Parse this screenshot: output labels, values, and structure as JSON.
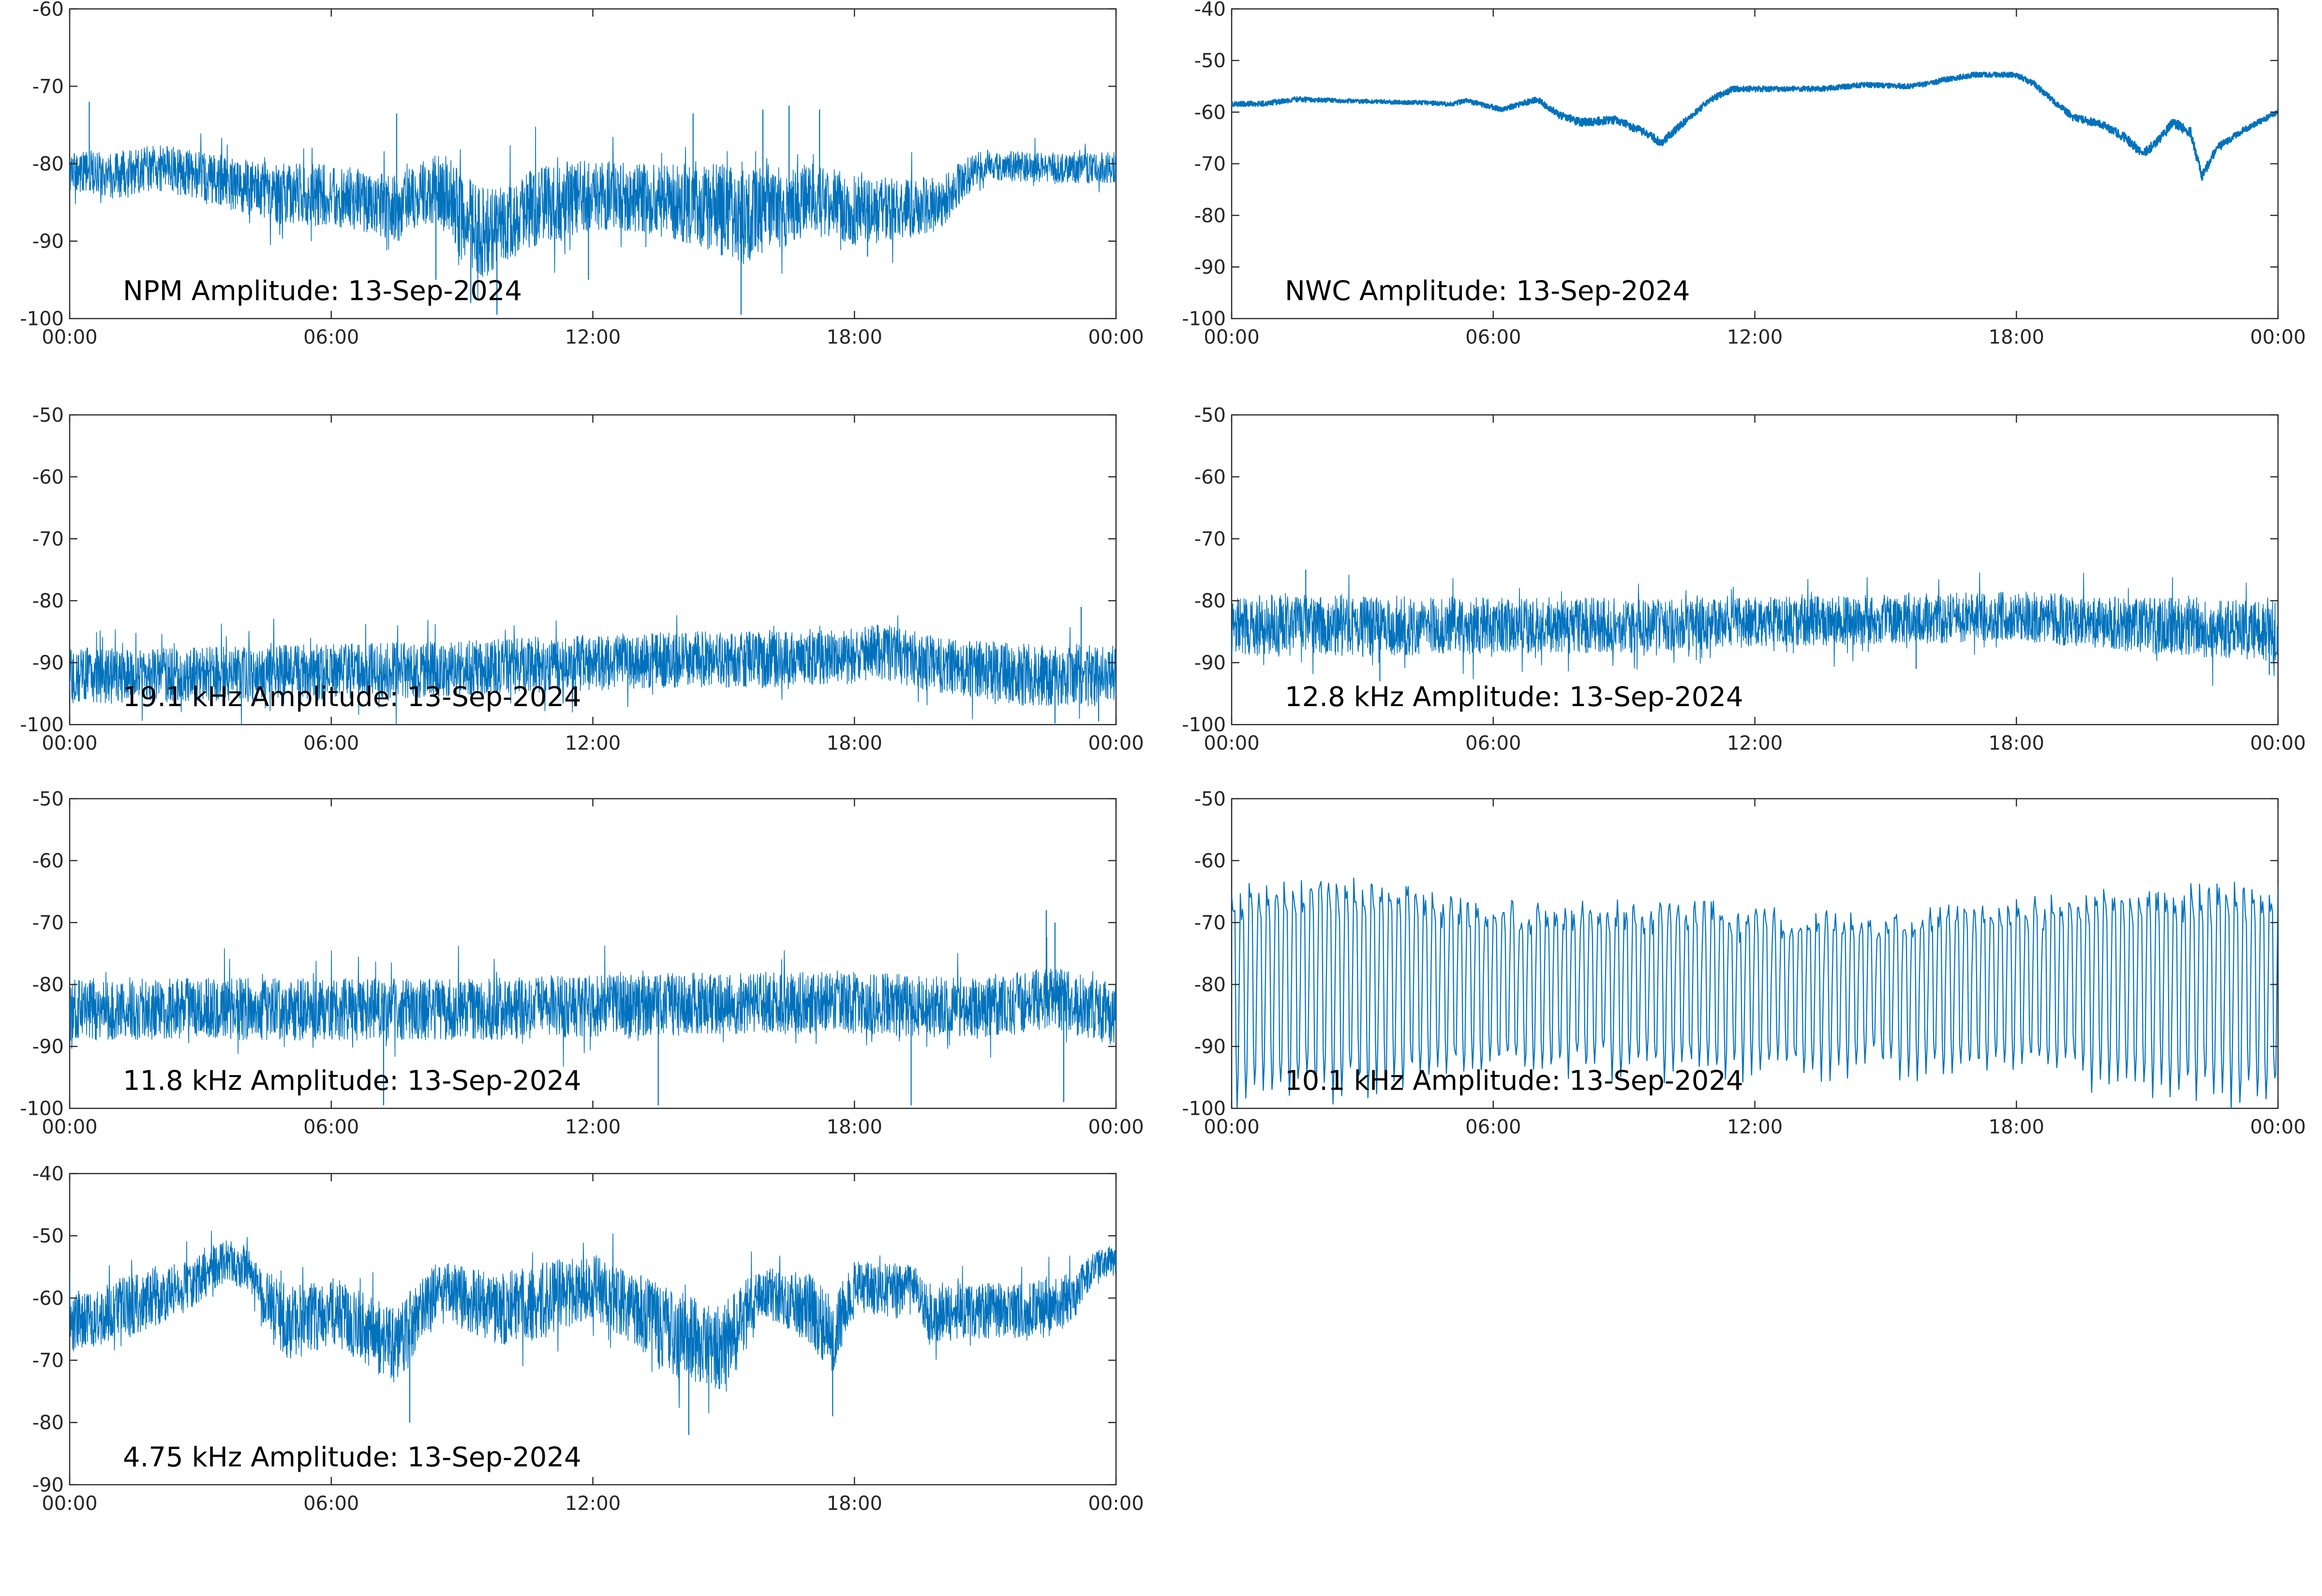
{
  "chart_data": [
    {
      "type": "line",
      "title": "NPM Amplitude: 13-Sep-2024",
      "xlabel": "",
      "ylabel": "",
      "xlim": [
        "00:00",
        "24:00"
      ],
      "ylim": [
        -100,
        -60
      ],
      "yticks": [
        -100,
        -90,
        -80,
        -70,
        -60
      ],
      "xticks": [
        "00:00",
        "06:00",
        "12:00",
        "18:00",
        "00:00"
      ],
      "grid": false,
      "color": "#0072bd",
      "trace": {
        "hours": [
          0,
          1,
          2,
          3,
          4,
          5,
          6,
          7,
          7.5,
          8,
          8.5,
          9,
          9.5,
          10,
          10.5,
          11,
          12,
          13,
          14,
          15,
          15.5,
          16,
          16.5,
          17,
          18,
          19,
          20,
          20.5,
          21,
          22,
          23,
          24
        ],
        "center": [
          -81,
          -81.5,
          -80.5,
          -81.5,
          -83,
          -84,
          -84,
          -85,
          -86,
          -84,
          -83,
          -87,
          -89,
          -88,
          -86,
          -85,
          -84,
          -84.5,
          -85,
          -86,
          -87,
          -85,
          -86,
          -84,
          -86,
          -86,
          -85,
          -82,
          -80,
          -80.5,
          -80.5,
          -80.5
        ],
        "noise": [
          2.5,
          3,
          3,
          3,
          3.5,
          4,
          4,
          4,
          4.5,
          4,
          5,
          6,
          6,
          5,
          5,
          5,
          4.5,
          4.5,
          5,
          6,
          6,
          6,
          5,
          4.5,
          4.5,
          4,
          3.5,
          2.5,
          2,
          2,
          2,
          2
        ]
      },
      "spikes": [
        [
          0.45,
          -72
        ],
        [
          7.5,
          -73.5
        ],
        [
          8.4,
          -95
        ],
        [
          9.2,
          -98
        ],
        [
          9.8,
          -99.5
        ],
        [
          11.9,
          -95
        ],
        [
          14.3,
          -73.5
        ],
        [
          15.4,
          -99.5
        ],
        [
          15.9,
          -73
        ],
        [
          16.5,
          -72.5
        ],
        [
          17.2,
          -73
        ],
        [
          18.3,
          -92
        ]
      ]
    },
    {
      "type": "line",
      "title": "NWC Amplitude: 13-Sep-2024",
      "xlabel": "",
      "ylabel": "",
      "xlim": [
        "00:00",
        "24:00"
      ],
      "ylim": [
        -100,
        -40
      ],
      "yticks": [
        -100,
        -90,
        -80,
        -70,
        -60,
        -50,
        -40
      ],
      "xticks": [
        "00:00",
        "06:00",
        "12:00",
        "18:00",
        "00:00"
      ],
      "grid": false,
      "color": "#0072bd",
      "trace": {
        "hours": [
          0,
          0.8,
          1.5,
          2.5,
          3.5,
          4.5,
          5.0,
          5.4,
          6.2,
          7.0,
          7.5,
          8.0,
          8.8,
          9.5,
          9.85,
          10.5,
          11.0,
          11.5,
          12.5,
          13.5,
          14.5,
          15.5,
          16.0,
          16.3,
          17.0,
          17.5,
          18.0,
          18.4,
          18.8,
          19.3,
          20.0,
          20.5,
          20.9,
          21.2,
          21.6,
          22.0,
          22.25,
          22.6,
          23.2,
          24.0
        ],
        "center": [
          -58.5,
          -58.3,
          -57.5,
          -57.8,
          -58.0,
          -58.2,
          -58.5,
          -57.8,
          -59.5,
          -57.5,
          -60.5,
          -62.0,
          -61.5,
          -64.0,
          -66.0,
          -61.0,
          -57.5,
          -55.5,
          -55.5,
          -55.5,
          -54.7,
          -55.0,
          -54.5,
          -53.8,
          -52.8,
          -52.7,
          -52.8,
          -54.5,
          -57.5,
          -61.0,
          -62.5,
          -65.0,
          -68.0,
          -66.0,
          -62.0,
          -64.0,
          -72.5,
          -67.0,
          -63.5,
          -60.0
        ],
        "noise": [
          0.5,
          0.5,
          0.5,
          0.4,
          0.4,
          0.4,
          0.4,
          0.5,
          0.5,
          0.6,
          0.7,
          0.8,
          0.8,
          0.8,
          0.8,
          0.7,
          0.6,
          0.6,
          0.5,
          0.5,
          0.5,
          0.5,
          0.5,
          0.5,
          0.5,
          0.5,
          0.5,
          0.6,
          0.6,
          0.7,
          0.8,
          0.9,
          1.0,
          0.9,
          0.9,
          1.0,
          1.0,
          0.8,
          0.6,
          0.5
        ]
      },
      "spikes": []
    },
    {
      "type": "line",
      "title": "19.1 kHz Amplitude: 13-Sep-2024",
      "xlabel": "",
      "ylabel": "",
      "xlim": [
        "00:00",
        "24:00"
      ],
      "ylim": [
        -100,
        -50
      ],
      "yticks": [
        -100,
        -90,
        -80,
        -70,
        -60,
        -50
      ],
      "xticks": [
        "00:00",
        "06:00",
        "12:00",
        "18:00",
        "00:00"
      ],
      "grid": false,
      "color": "#0072bd",
      "trace": {
        "hours": [
          0,
          3,
          6,
          9,
          12,
          14,
          16,
          18,
          18.5,
          20,
          22,
          24
        ],
        "center": [
          -92,
          -92,
          -91.5,
          -91,
          -90,
          -89.5,
          -89.5,
          -89,
          -88,
          -90.5,
          -92,
          -92
        ],
        "noise": [
          4.5,
          4.5,
          4.5,
          4.5,
          4.5,
          4.5,
          4.5,
          4.5,
          4.5,
          4.5,
          5,
          5
        ]
      },
      "spikes": [
        [
          23.2,
          -81
        ],
        [
          22.6,
          -99.8
        ],
        [
          23.6,
          -99.5
        ]
      ]
    },
    {
      "type": "line",
      "title": "12.8 kHz Amplitude: 13-Sep-2024",
      "xlabel": "",
      "ylabel": "",
      "xlim": [
        "00:00",
        "24:00"
      ],
      "ylim": [
        -100,
        -50
      ],
      "yticks": [
        -100,
        -90,
        -80,
        -70,
        -60,
        -50
      ],
      "xticks": [
        "00:00",
        "06:00",
        "12:00",
        "18:00",
        "00:00"
      ],
      "grid": false,
      "color": "#0072bd",
      "trace": {
        "hours": [
          0,
          3,
          6,
          9,
          12,
          15,
          18,
          21,
          24
        ],
        "center": [
          -84,
          -84,
          -84,
          -84,
          -83.5,
          -83,
          -82.5,
          -84,
          -85
        ],
        "noise": [
          5,
          5,
          4.5,
          4.5,
          4,
          4,
          4,
          4.5,
          5
        ]
      },
      "spikes": [
        [
          1.7,
          -75
        ],
        [
          3.4,
          -93
        ],
        [
          15.7,
          -91
        ],
        [
          23.8,
          -92
        ]
      ]
    },
    {
      "type": "line",
      "title": "11.8 kHz Amplitude: 13-Sep-2024",
      "xlabel": "",
      "ylabel": "",
      "xlim": [
        "00:00",
        "24:00"
      ],
      "ylim": [
        -100,
        -50
      ],
      "yticks": [
        -100,
        -90,
        -80,
        -70,
        -60,
        -50
      ],
      "xticks": [
        "00:00",
        "06:00",
        "12:00",
        "18:00",
        "00:00"
      ],
      "grid": false,
      "color": "#0072bd",
      "trace": {
        "hours": [
          0,
          3,
          6,
          9,
          12,
          15,
          18,
          21,
          22.5,
          24
        ],
        "center": [
          -84,
          -84,
          -84,
          -84,
          -83.5,
          -83,
          -83,
          -84,
          -82,
          -85
        ],
        "noise": [
          5,
          5,
          5,
          5,
          5,
          5,
          5,
          5,
          5,
          5
        ]
      },
      "spikes": [
        [
          22.4,
          -68
        ],
        [
          22.6,
          -70
        ],
        [
          7.2,
          -99.5
        ],
        [
          13.5,
          -99.5
        ],
        [
          19.3,
          -99.5
        ],
        [
          22.8,
          -99
        ]
      ]
    },
    {
      "type": "line",
      "title": "10.1 kHz Amplitude: 13-Sep-2024",
      "xlabel": "",
      "ylabel": "",
      "xlim": [
        "00:00",
        "24:00"
      ],
      "ylim": [
        -100,
        -50
      ],
      "yticks": [
        -100,
        -90,
        -80,
        -70,
        -60,
        -50
      ],
      "xticks": [
        "00:00",
        "06:00",
        "12:00",
        "18:00",
        "00:00"
      ],
      "grid": false,
      "color": "#0072bd",
      "pulse_trace": {
        "hours": [
          0,
          3,
          6,
          9,
          12,
          15,
          18,
          20,
          22,
          24
        ],
        "high": [
          -65,
          -64,
          -67,
          -67,
          -68,
          -68,
          -67,
          -66,
          -65,
          -65
        ],
        "low": [
          -100,
          -98,
          -95,
          -95,
          -95,
          -95,
          -95,
          -97,
          -99,
          -100
        ],
        "spacing_min": 12
      },
      "spikes": []
    },
    {
      "type": "line",
      "title": "4.75 kHz Amplitude: 13-Sep-2024",
      "xlabel": "",
      "ylabel": "",
      "xlim": [
        "00:00",
        "24:00"
      ],
      "ylim": [
        -90,
        -40
      ],
      "yticks": [
        -90,
        -80,
        -70,
        -60,
        -50,
        -40
      ],
      "xticks": [
        "00:00",
        "06:00",
        "12:00",
        "18:00",
        "00:00"
      ],
      "grid": false,
      "color": "#0072bd",
      "trace": {
        "hours": [
          0,
          1,
          2,
          3,
          3.5,
          4,
          4.5,
          5,
          6,
          7,
          7.5,
          8,
          8.5,
          9,
          10,
          11,
          12,
          13,
          14,
          15,
          15.5,
          16,
          17,
          17.5,
          18,
          19,
          19.3,
          19.8,
          20,
          21,
          22,
          23,
          23.5,
          24
        ],
        "center": [
          -64,
          -62,
          -60,
          -57,
          -54,
          -55,
          -60,
          -64,
          -62,
          -66,
          -68,
          -63,
          -58,
          -60,
          -62,
          -60,
          -58,
          -62,
          -66,
          -68,
          -62,
          -59,
          -62,
          -66,
          -58,
          -59,
          -57,
          -64,
          -62,
          -62,
          -62,
          -60,
          -55,
          -54
        ],
        "noise": [
          5,
          5,
          4.5,
          4,
          3.5,
          3.5,
          5,
          6,
          5.5,
          6,
          6,
          6,
          4,
          5,
          6,
          6,
          5,
          6,
          7,
          7,
          5,
          4,
          6,
          6,
          4,
          4.5,
          3,
          5,
          4.5,
          4.5,
          4.5,
          4,
          2.5,
          2.5
        ]
      },
      "spikes": [
        [
          14.2,
          -82
        ],
        [
          17.5,
          -79
        ],
        [
          7.8,
          -80
        ]
      ]
    }
  ]
}
